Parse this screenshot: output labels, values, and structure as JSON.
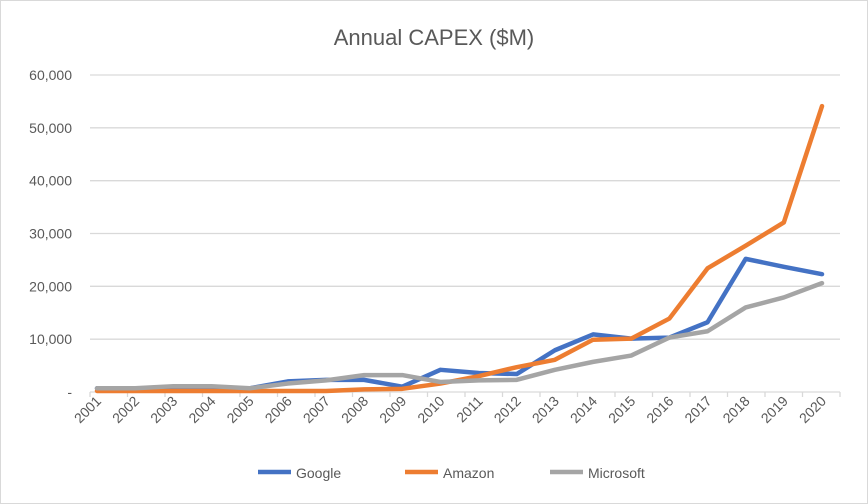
{
  "chart_data": {
    "type": "line",
    "title": "Annual CAPEX ($M)",
    "xlabel": "",
    "ylabel": "",
    "categories": [
      "2001",
      "2002",
      "2003",
      "2004",
      "2005",
      "2006",
      "2007",
      "2008",
      "2009",
      "2010",
      "2011",
      "2012",
      "2013",
      "2014",
      "2015",
      "2016",
      "2017",
      "2018",
      "2019",
      "2020"
    ],
    "ylim": [
      0,
      60000
    ],
    "yticks": [
      0,
      10000,
      20000,
      30000,
      40000,
      50000,
      60000
    ],
    "ytick_labels": [
      "-",
      "10,000",
      "20,000",
      "30,000",
      "40,000",
      "50,000",
      "60,000"
    ],
    "grid": true,
    "legend_position": "bottom",
    "series": [
      {
        "name": "Google",
        "color": "#4472C4",
        "values": [
          700,
          700,
          500,
          500,
          700,
          2000,
          2300,
          2300,
          1000,
          4200,
          3600,
          3400,
          7900,
          10900,
          10100,
          10300,
          13200,
          25200,
          23700,
          22300
        ]
      },
      {
        "name": "Amazon",
        "color": "#ED7D31",
        "values": [
          200,
          200,
          200,
          200,
          200,
          200,
          200,
          500,
          600,
          1600,
          3000,
          4700,
          6100,
          9900,
          10100,
          13900,
          23400,
          27700,
          32100,
          54100
        ]
      },
      {
        "name": "Microsoft",
        "color": "#A5A5A5",
        "values": [
          700,
          700,
          1100,
          1100,
          700,
          1600,
          2200,
          3200,
          3200,
          1900,
          2200,
          2300,
          4200,
          5700,
          6900,
          10300,
          11500,
          16000,
          17900,
          20600
        ]
      }
    ]
  }
}
